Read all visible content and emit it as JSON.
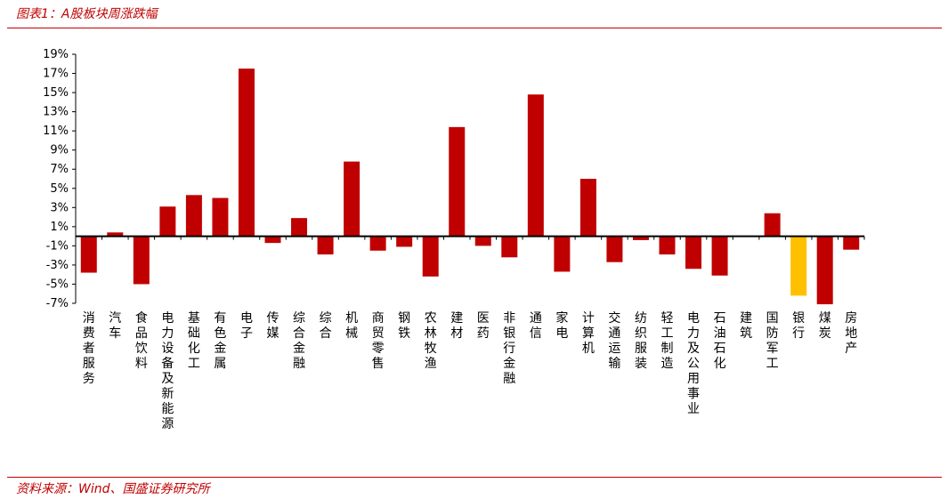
{
  "header": {
    "title": "图表1：A股板块周涨跌幅"
  },
  "footer": {
    "source": "资料来源：Wind、国盛证券研究所"
  },
  "colors": {
    "bar": "#c00000",
    "highlight": "#ffc000",
    "rule": "#c00000",
    "axis": "#000000"
  },
  "chart_data": {
    "type": "bar",
    "title": "",
    "xlabel": "",
    "ylabel": "",
    "ylim": [
      -7,
      19
    ],
    "yticks": [
      19,
      17,
      15,
      13,
      11,
      9,
      7,
      5,
      3,
      1,
      -1,
      -3,
      -5,
      -7
    ],
    "ytick_suffix": "%",
    "grid": false,
    "legend": "none",
    "highlight_category": "银行",
    "categories": [
      "消费者服务",
      "汽车",
      "食品饮料",
      "电力设备及新能源",
      "基础化工",
      "有色金属",
      "电子",
      "传媒",
      "综合金融",
      "综合",
      "机械",
      "商贸零售",
      "钢铁",
      "农林牧渔",
      "建材",
      "医药",
      "非银行金融",
      "通信",
      "家电",
      "计算机",
      "交通运输",
      "纺织服装",
      "轻工制造",
      "电力及公用事业",
      "石油石化",
      "建筑",
      "国防军工",
      "银行",
      "煤炭",
      "房地产"
    ],
    "values": [
      -3.8,
      0.4,
      -5.0,
      3.1,
      4.3,
      4.0,
      17.5,
      -0.7,
      1.9,
      -1.9,
      7.8,
      -1.5,
      -1.1,
      -4.2,
      11.4,
      -1.0,
      -2.2,
      14.8,
      -3.7,
      6.0,
      -2.7,
      -0.4,
      -1.9,
      -3.4,
      -4.1,
      0.0,
      2.4,
      -6.2,
      -7.1,
      -1.4
    ]
  }
}
